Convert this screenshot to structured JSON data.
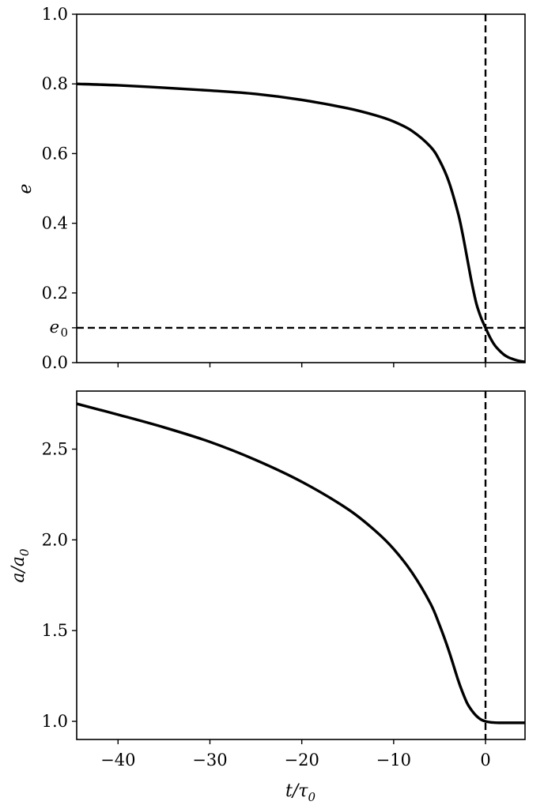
{
  "chart_data": [
    {
      "type": "line",
      "panel": "top",
      "xlabel": "",
      "ylabel": "e",
      "xlim": [
        -44.5,
        4.3
      ],
      "ylim": [
        0.0,
        1.0
      ],
      "yticks": [
        {
          "value": 0.0,
          "label": "0.0"
        },
        {
          "value": 0.2,
          "label": "0.2"
        },
        {
          "value": 0.4,
          "label": "0.4"
        },
        {
          "value": 0.6,
          "label": "0.6"
        },
        {
          "value": 0.8,
          "label": "0.8"
        },
        {
          "value": 1.0,
          "label": "1.0"
        }
      ],
      "extra_ytick": {
        "value": 0.1,
        "label": "e",
        "subscript": "0"
      },
      "xticks_unlabeled": [
        -40,
        -30,
        -20,
        -10,
        0
      ],
      "grid": false,
      "series": [
        {
          "x": [
            -44.5,
            -40,
            -35,
            -30,
            -25,
            -20,
            -15,
            -12,
            -10,
            -8,
            -6,
            -5,
            -4,
            -3,
            -2.5,
            -2,
            -1.5,
            -1,
            -0.5,
            0,
            0.5,
            1,
            1.5,
            2,
            2.5,
            3,
            3.5,
            4.3
          ],
          "y": [
            0.8,
            0.796,
            0.789,
            0.781,
            0.771,
            0.754,
            0.73,
            0.71,
            0.692,
            0.665,
            0.62,
            0.58,
            0.52,
            0.43,
            0.37,
            0.3,
            0.23,
            0.17,
            0.13,
            0.1,
            0.072,
            0.05,
            0.035,
            0.023,
            0.015,
            0.01,
            0.006,
            0.002
          ],
          "color": "#000000",
          "style": "solid"
        }
      ],
      "reference_lines": [
        {
          "orientation": "horizontal",
          "value": 0.1,
          "style": "dashed",
          "color": "#000000"
        },
        {
          "orientation": "vertical",
          "value": 0,
          "style": "dashed",
          "color": "#000000"
        }
      ]
    },
    {
      "type": "line",
      "panel": "bottom",
      "xlabel": "t/τ",
      "xlabel_subscript": "0",
      "ylabel": "a/a",
      "ylabel_subscript": "0",
      "xlim": [
        -44.5,
        4.3
      ],
      "ylim": [
        0.9,
        2.82
      ],
      "yticks": [
        {
          "value": 1.0,
          "label": "1.0"
        },
        {
          "value": 1.5,
          "label": "1.5"
        },
        {
          "value": 2.0,
          "label": "2.0"
        },
        {
          "value": 2.5,
          "label": "2.5"
        }
      ],
      "xticks": [
        {
          "value": -40,
          "label": "−40"
        },
        {
          "value": -30,
          "label": "−30"
        },
        {
          "value": -20,
          "label": "−20"
        },
        {
          "value": -10,
          "label": "−10"
        },
        {
          "value": 0,
          "label": "0"
        }
      ],
      "grid": false,
      "series": [
        {
          "x": [
            -44.5,
            -40,
            -35,
            -30,
            -25,
            -20,
            -15,
            -12,
            -10,
            -8,
            -6,
            -5,
            -4,
            -3,
            -2.5,
            -2,
            -1.5,
            -1,
            -0.5,
            0,
            0.5,
            1,
            1.5,
            2,
            3,
            4.3
          ],
          "y": [
            2.75,
            2.69,
            2.62,
            2.54,
            2.44,
            2.32,
            2.17,
            2.05,
            1.95,
            1.82,
            1.65,
            1.53,
            1.39,
            1.23,
            1.16,
            1.1,
            1.06,
            1.03,
            1.01,
            1.0,
            0.995,
            0.993,
            0.992,
            0.992,
            0.992,
            0.992
          ],
          "color": "#000000",
          "style": "solid"
        }
      ],
      "reference_lines": [
        {
          "orientation": "vertical",
          "value": 0,
          "style": "dashed",
          "color": "#000000"
        }
      ]
    }
  ]
}
